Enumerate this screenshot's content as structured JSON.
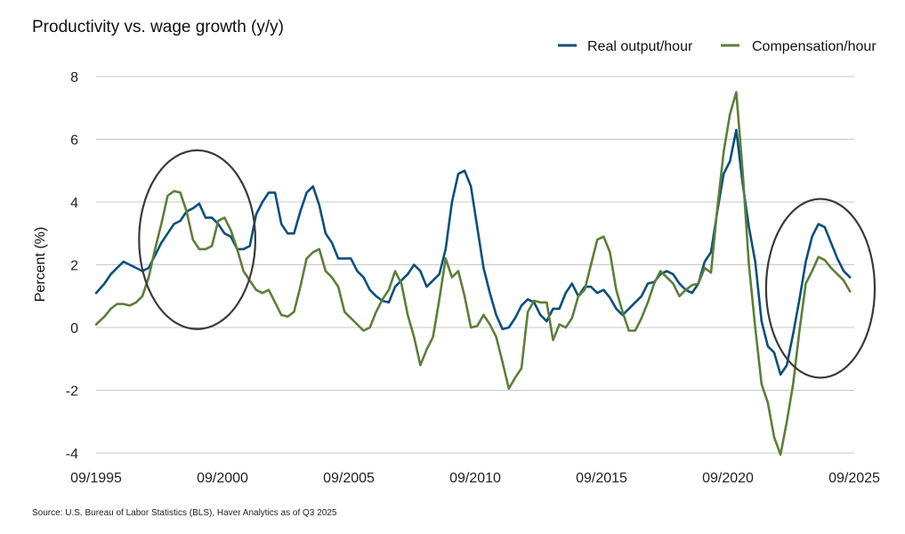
{
  "chart_data": {
    "type": "line",
    "title": "Productivity vs. wage growth (y/y)",
    "ylabel": "Percent (%)",
    "xlabel": "",
    "ylim": [
      -4,
      8
    ],
    "yticks": [
      -4,
      -2,
      0,
      2,
      4,
      6,
      8
    ],
    "ytick_labels": [
      "-4",
      "-2",
      "0",
      "2",
      "4",
      "6",
      "8"
    ],
    "xlim": [
      1995.67,
      2025.67
    ],
    "xticks": [
      1995.67,
      2000.67,
      2005.67,
      2010.67,
      2015.67,
      2020.67,
      2025.67
    ],
    "xtick_labels": [
      "09/1995",
      "09/2000",
      "09/2005",
      "09/2010",
      "09/2015",
      "09/2020",
      "09/2025"
    ],
    "grid": "horizontal",
    "legend": "top-right",
    "source": "Source: U.S. Bureau of Labor Statistics (BLS), Haver Analytics as of Q3 2025",
    "series": [
      {
        "name": "Real output/hour",
        "color": "#0b4f7c",
        "points": [
          [
            1995.67,
            1.1
          ],
          [
            1996.0,
            1.4
          ],
          [
            1996.25,
            1.7
          ],
          [
            1996.5,
            1.9
          ],
          [
            1996.75,
            2.1
          ],
          [
            1997.0,
            2.0
          ],
          [
            1997.25,
            1.9
          ],
          [
            1997.5,
            1.8
          ],
          [
            1997.75,
            1.9
          ],
          [
            1998.0,
            2.3
          ],
          [
            1998.25,
            2.7
          ],
          [
            1998.5,
            3.0
          ],
          [
            1998.75,
            3.3
          ],
          [
            1999.0,
            3.4
          ],
          [
            1999.25,
            3.7
          ],
          [
            1999.5,
            3.8
          ],
          [
            1999.75,
            3.95
          ],
          [
            2000.0,
            3.5
          ],
          [
            2000.25,
            3.5
          ],
          [
            2000.5,
            3.3
          ],
          [
            2000.75,
            3.0
          ],
          [
            2001.0,
            2.9
          ],
          [
            2001.25,
            2.5
          ],
          [
            2001.5,
            2.5
          ],
          [
            2001.75,
            2.6
          ],
          [
            2002.0,
            3.6
          ],
          [
            2002.25,
            4.0
          ],
          [
            2002.5,
            4.3
          ],
          [
            2002.75,
            4.3
          ],
          [
            2003.0,
            3.3
          ],
          [
            2003.25,
            3.0
          ],
          [
            2003.5,
            3.0
          ],
          [
            2003.75,
            3.7
          ],
          [
            2004.0,
            4.3
          ],
          [
            2004.25,
            4.5
          ],
          [
            2004.5,
            3.9
          ],
          [
            2004.75,
            3.0
          ],
          [
            2005.0,
            2.7
          ],
          [
            2005.25,
            2.2
          ],
          [
            2005.5,
            2.2
          ],
          [
            2005.75,
            2.2
          ],
          [
            2006.0,
            1.8
          ],
          [
            2006.25,
            1.6
          ],
          [
            2006.5,
            1.2
          ],
          [
            2006.75,
            1.0
          ],
          [
            2007.0,
            0.85
          ],
          [
            2007.25,
            0.8
          ],
          [
            2007.5,
            1.3
          ],
          [
            2007.75,
            1.5
          ],
          [
            2008.0,
            1.7
          ],
          [
            2008.25,
            2.0
          ],
          [
            2008.5,
            1.8
          ],
          [
            2008.75,
            1.3
          ],
          [
            2009.0,
            1.5
          ],
          [
            2009.25,
            1.7
          ],
          [
            2009.5,
            2.5
          ],
          [
            2009.75,
            4.0
          ],
          [
            2010.0,
            4.9
          ],
          [
            2010.25,
            5.0
          ],
          [
            2010.5,
            4.5
          ],
          [
            2010.75,
            3.2
          ],
          [
            2011.0,
            1.9
          ],
          [
            2011.25,
            1.1
          ],
          [
            2011.5,
            0.4
          ],
          [
            2011.75,
            -0.05
          ],
          [
            2012.0,
            0.0
          ],
          [
            2012.25,
            0.3
          ],
          [
            2012.5,
            0.7
          ],
          [
            2012.75,
            0.9
          ],
          [
            2013.0,
            0.8
          ],
          [
            2013.25,
            0.4
          ],
          [
            2013.5,
            0.2
          ],
          [
            2013.75,
            0.6
          ],
          [
            2014.0,
            0.6
          ],
          [
            2014.25,
            1.1
          ],
          [
            2014.5,
            1.4
          ],
          [
            2014.75,
            1.0
          ],
          [
            2015.0,
            1.3
          ],
          [
            2015.25,
            1.3
          ],
          [
            2015.5,
            1.1
          ],
          [
            2015.75,
            1.2
          ],
          [
            2016.0,
            0.95
          ],
          [
            2016.25,
            0.6
          ],
          [
            2016.5,
            0.4
          ],
          [
            2016.75,
            0.6
          ],
          [
            2017.0,
            0.8
          ],
          [
            2017.25,
            1.0
          ],
          [
            2017.5,
            1.4
          ],
          [
            2017.75,
            1.45
          ],
          [
            2018.0,
            1.7
          ],
          [
            2018.25,
            1.8
          ],
          [
            2018.5,
            1.7
          ],
          [
            2018.75,
            1.4
          ],
          [
            2019.0,
            1.2
          ],
          [
            2019.25,
            1.1
          ],
          [
            2019.5,
            1.4
          ],
          [
            2019.75,
            2.1
          ],
          [
            2020.0,
            2.4
          ],
          [
            2020.25,
            3.7
          ],
          [
            2020.5,
            4.9
          ],
          [
            2020.75,
            5.3
          ],
          [
            2021.0,
            6.3
          ],
          [
            2021.25,
            4.6
          ],
          [
            2021.5,
            3.2
          ],
          [
            2021.75,
            2.1
          ],
          [
            2022.0,
            0.2
          ],
          [
            2022.25,
            -0.6
          ],
          [
            2022.5,
            -0.8
          ],
          [
            2022.75,
            -1.5
          ],
          [
            2023.0,
            -1.2
          ],
          [
            2023.25,
            -0.2
          ],
          [
            2023.5,
            0.9
          ],
          [
            2023.75,
            2.1
          ],
          [
            2024.0,
            2.9
          ],
          [
            2024.25,
            3.3
          ],
          [
            2024.5,
            3.2
          ],
          [
            2024.75,
            2.7
          ],
          [
            2025.0,
            2.2
          ],
          [
            2025.25,
            1.8
          ],
          [
            2025.5,
            1.6
          ]
        ]
      },
      {
        "name": "Compensation/hour",
        "color": "#5b7f3a",
        "points": [
          [
            1995.67,
            0.1
          ],
          [
            1996.0,
            0.35
          ],
          [
            1996.25,
            0.6
          ],
          [
            1996.5,
            0.75
          ],
          [
            1996.75,
            0.75
          ],
          [
            1997.0,
            0.7
          ],
          [
            1997.25,
            0.8
          ],
          [
            1997.5,
            1.0
          ],
          [
            1997.75,
            1.6
          ],
          [
            1998.0,
            2.5
          ],
          [
            1998.25,
            3.3
          ],
          [
            1998.5,
            4.2
          ],
          [
            1998.75,
            4.35
          ],
          [
            1999.0,
            4.3
          ],
          [
            1999.25,
            3.7
          ],
          [
            1999.5,
            2.8
          ],
          [
            1999.75,
            2.5
          ],
          [
            2000.0,
            2.5
          ],
          [
            2000.25,
            2.6
          ],
          [
            2000.5,
            3.4
          ],
          [
            2000.75,
            3.5
          ],
          [
            2001.0,
            3.1
          ],
          [
            2001.25,
            2.5
          ],
          [
            2001.5,
            1.8
          ],
          [
            2001.75,
            1.5
          ],
          [
            2002.0,
            1.2
          ],
          [
            2002.25,
            1.1
          ],
          [
            2002.5,
            1.2
          ],
          [
            2002.75,
            0.8
          ],
          [
            2003.0,
            0.4
          ],
          [
            2003.25,
            0.35
          ],
          [
            2003.5,
            0.5
          ],
          [
            2003.75,
            1.3
          ],
          [
            2004.0,
            2.2
          ],
          [
            2004.25,
            2.4
          ],
          [
            2004.5,
            2.5
          ],
          [
            2004.75,
            1.8
          ],
          [
            2005.0,
            1.6
          ],
          [
            2005.25,
            1.3
          ],
          [
            2005.5,
            0.5
          ],
          [
            2005.75,
            0.3
          ],
          [
            2006.0,
            0.1
          ],
          [
            2006.25,
            -0.1
          ],
          [
            2006.5,
            0.0
          ],
          [
            2006.75,
            0.5
          ],
          [
            2007.0,
            0.9
          ],
          [
            2007.25,
            1.2
          ],
          [
            2007.5,
            1.8
          ],
          [
            2007.75,
            1.4
          ],
          [
            2008.0,
            0.4
          ],
          [
            2008.25,
            -0.3
          ],
          [
            2008.5,
            -1.2
          ],
          [
            2008.75,
            -0.7
          ],
          [
            2009.0,
            -0.3
          ],
          [
            2009.25,
            0.9
          ],
          [
            2009.5,
            2.2
          ],
          [
            2009.75,
            1.6
          ],
          [
            2010.0,
            1.8
          ],
          [
            2010.25,
            1.0
          ],
          [
            2010.5,
            0.0
          ],
          [
            2010.75,
            0.05
          ],
          [
            2011.0,
            0.4
          ],
          [
            2011.25,
            0.1
          ],
          [
            2011.5,
            -0.3
          ],
          [
            2011.75,
            -1.1
          ],
          [
            2012.0,
            -1.95
          ],
          [
            2012.25,
            -1.6
          ],
          [
            2012.5,
            -1.3
          ],
          [
            2012.75,
            0.5
          ],
          [
            2013.0,
            0.85
          ],
          [
            2013.25,
            0.8
          ],
          [
            2013.5,
            0.8
          ],
          [
            2013.75,
            -0.4
          ],
          [
            2014.0,
            0.1
          ],
          [
            2014.25,
            0.0
          ],
          [
            2014.5,
            0.3
          ],
          [
            2014.75,
            1.0
          ],
          [
            2015.0,
            1.2
          ],
          [
            2015.25,
            2.0
          ],
          [
            2015.5,
            2.8
          ],
          [
            2015.75,
            2.9
          ],
          [
            2016.0,
            2.4
          ],
          [
            2016.25,
            1.2
          ],
          [
            2016.5,
            0.5
          ],
          [
            2016.75,
            -0.1
          ],
          [
            2017.0,
            -0.1
          ],
          [
            2017.25,
            0.3
          ],
          [
            2017.5,
            0.8
          ],
          [
            2017.75,
            1.4
          ],
          [
            2018.0,
            1.8
          ],
          [
            2018.25,
            1.6
          ],
          [
            2018.5,
            1.4
          ],
          [
            2018.75,
            1.0
          ],
          [
            2019.0,
            1.2
          ],
          [
            2019.25,
            1.35
          ],
          [
            2019.5,
            1.4
          ],
          [
            2019.75,
            1.9
          ],
          [
            2020.0,
            1.75
          ],
          [
            2020.25,
            3.8
          ],
          [
            2020.5,
            5.6
          ],
          [
            2020.75,
            6.8
          ],
          [
            2021.0,
            7.5
          ],
          [
            2021.25,
            5.0
          ],
          [
            2021.5,
            2.0
          ],
          [
            2021.75,
            0.0
          ],
          [
            2022.0,
            -1.8
          ],
          [
            2022.25,
            -2.4
          ],
          [
            2022.5,
            -3.5
          ],
          [
            2022.75,
            -4.05
          ],
          [
            2023.0,
            -3.0
          ],
          [
            2023.25,
            -1.8
          ],
          [
            2023.5,
            -0.1
          ],
          [
            2023.75,
            1.4
          ],
          [
            2024.0,
            1.8
          ],
          [
            2024.25,
            2.25
          ],
          [
            2024.5,
            2.15
          ],
          [
            2024.75,
            1.9
          ],
          [
            2025.0,
            1.7
          ],
          [
            2025.25,
            1.5
          ],
          [
            2025.5,
            1.15
          ]
        ]
      }
    ],
    "annotations": [
      {
        "type": "ellipse",
        "cx": 1999.67,
        "cy": 2.8,
        "rx": 2.3,
        "ry": 2.85,
        "color": "#3a3a3a"
      },
      {
        "type": "ellipse",
        "cx": 2024.33,
        "cy": 1.25,
        "rx": 2.15,
        "ry": 2.85,
        "color": "#3a3a3a"
      }
    ]
  }
}
